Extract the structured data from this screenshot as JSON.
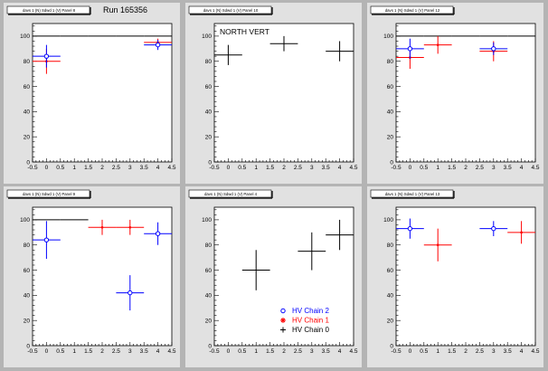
{
  "run_label": "Run 165356",
  "colors": {
    "background": "#b4b4b4",
    "pad": "#e1e1e1",
    "frame": "#ffffff",
    "chain0": "#000000",
    "chain1": "#ff0000",
    "chain2": "#0000ff"
  },
  "legend": [
    {
      "label": "HV Chain 2",
      "color": "#0000ff",
      "marker": "circle"
    },
    {
      "label": "HV Chain 1",
      "color": "#ff0000",
      "marker": "star"
    },
    {
      "label": "HV Chain 0",
      "color": "#000000",
      "marker": "plus"
    }
  ],
  "chart_data": [
    {
      "type": "scatter",
      "title": "davs 1 (N) Sdwd 1 (V) Panel 8",
      "annotation": "",
      "xlim": [
        -0.5,
        4.5
      ],
      "ylim": [
        0,
        110
      ],
      "xticks": [
        "-0.5",
        "0",
        "0.5",
        "1",
        "1.5",
        "2",
        "2.5",
        "3",
        "3.5",
        "4",
        "4.5"
      ],
      "yticks": [
        "0",
        "20",
        "40",
        "60",
        "80",
        "100"
      ],
      "series": [
        {
          "color": "#000000",
          "marker": "plus",
          "points": [
            {
              "x": 0,
              "y": 100,
              "xerr": 0.5,
              "yerr": 0
            },
            {
              "x": 1,
              "y": 100,
              "xerr": 0.5,
              "yerr": 0
            },
            {
              "x": 2,
              "y": 100,
              "xerr": 0.5,
              "yerr": 0
            },
            {
              "x": 3,
              "y": 100,
              "xerr": 0.5,
              "yerr": 0
            },
            {
              "x": 4,
              "y": 100,
              "xerr": 0.5,
              "yerr": 0
            }
          ]
        },
        {
          "color": "#ff0000",
          "marker": "star",
          "points": [
            {
              "x": 0,
              "y": 80,
              "xerr": 0.5,
              "yerr": 10
            },
            {
              "x": 4,
              "y": 95,
              "xerr": 0.5,
              "yerr": 3
            }
          ]
        },
        {
          "color": "#0000ff",
          "marker": "circle",
          "points": [
            {
              "x": 0,
              "y": 84,
              "xerr": 0.5,
              "yerr": 9
            },
            {
              "x": 4,
              "y": 93,
              "xerr": 0.5,
              "yerr": 4
            }
          ]
        }
      ]
    },
    {
      "type": "scatter",
      "title": "davs 1 (N) Sdwd 1 (V) Panel 10",
      "annotation": "NORTH VERT",
      "xlim": [
        -0.5,
        4.5
      ],
      "ylim": [
        0,
        110
      ],
      "xticks": [
        "-0.5",
        "0",
        "0.5",
        "1",
        "1.5",
        "2",
        "2.5",
        "3",
        "3.5",
        "4",
        "4.5"
      ],
      "yticks": [
        "0",
        "20",
        "40",
        "60",
        "80",
        "100"
      ],
      "series": [
        {
          "color": "#000000",
          "marker": "plus",
          "points": [
            {
              "x": 0,
              "y": 85,
              "xerr": 0.5,
              "yerr": 8
            },
            {
              "x": 2,
              "y": 94,
              "xerr": 0.5,
              "yerr": 6
            },
            {
              "x": 4,
              "y": 88,
              "xerr": 0.5,
              "yerr": 8
            }
          ]
        }
      ]
    },
    {
      "type": "scatter",
      "title": "davs 1 (N) Sdwd 1 (V) Panel 12",
      "annotation": "",
      "xlim": [
        -0.5,
        4.5
      ],
      "ylim": [
        0,
        110
      ],
      "xticks": [
        "-0.5",
        "0",
        "0.5",
        "1",
        "1.5",
        "2",
        "2.5",
        "3",
        "3.5",
        "4",
        "4.5"
      ],
      "yticks": [
        "0",
        "20",
        "40",
        "60",
        "80",
        "100"
      ],
      "series": [
        {
          "color": "#000000",
          "marker": "plus",
          "points": [
            {
              "x": 0,
              "y": 100,
              "xerr": 0.5,
              "yerr": 0
            },
            {
              "x": 1,
              "y": 100,
              "xerr": 0.5,
              "yerr": 0
            },
            {
              "x": 2,
              "y": 100,
              "xerr": 0.5,
              "yerr": 0
            },
            {
              "x": 3,
              "y": 100,
              "xerr": 0.5,
              "yerr": 0
            },
            {
              "x": 4,
              "y": 100,
              "xerr": 0.5,
              "yerr": 0
            }
          ]
        },
        {
          "color": "#ff0000",
          "marker": "star",
          "points": [
            {
              "x": 0,
              "y": 83,
              "xerr": 0.5,
              "yerr": 9
            },
            {
              "x": 1,
              "y": 93,
              "xerr": 0.5,
              "yerr": 7
            },
            {
              "x": 3,
              "y": 88,
              "xerr": 0.5,
              "yerr": 8
            }
          ]
        },
        {
          "color": "#0000ff",
          "marker": "circle",
          "points": [
            {
              "x": 0,
              "y": 90,
              "xerr": 0.5,
              "yerr": 8
            },
            {
              "x": 3,
              "y": 90,
              "xerr": 0.5,
              "yerr": 5
            }
          ]
        }
      ]
    },
    {
      "type": "scatter",
      "title": "davs 1 (N) Sdwd 1 (V) Panel 9",
      "annotation": "",
      "xlim": [
        -0.5,
        4.5
      ],
      "ylim": [
        0,
        110
      ],
      "xticks": [
        "-0.5",
        "0",
        "0.5",
        "1",
        "1.5",
        "2",
        "2.5",
        "3",
        "3.5",
        "4",
        "4.5"
      ],
      "yticks": [
        "0",
        "20",
        "40",
        "60",
        "80",
        "100"
      ],
      "series": [
        {
          "color": "#000000",
          "marker": "plus",
          "points": [
            {
              "x": 0,
              "y": 100,
              "xerr": 0.5,
              "yerr": 0
            },
            {
              "x": 1,
              "y": 100,
              "xerr": 0.5,
              "yerr": 0
            }
          ]
        },
        {
          "color": "#ff0000",
          "marker": "star",
          "points": [
            {
              "x": 2,
              "y": 94,
              "xerr": 0.5,
              "yerr": 6
            },
            {
              "x": 3,
              "y": 94,
              "xerr": 0.5,
              "yerr": 6
            }
          ]
        },
        {
          "color": "#0000ff",
          "marker": "circle",
          "points": [
            {
              "x": 0,
              "y": 84,
              "xerr": 0.5,
              "yerr": 15
            },
            {
              "x": 3,
              "y": 42,
              "xerr": 0.5,
              "yerr": 14
            },
            {
              "x": 4,
              "y": 89,
              "xerr": 0.5,
              "yerr": 9
            }
          ]
        }
      ]
    },
    {
      "type": "scatter",
      "title": "davs 1 (N) Sdwd 1 (V) Panel 4",
      "annotation": "",
      "xlim": [
        -0.5,
        4.5
      ],
      "ylim": [
        0,
        110
      ],
      "xticks": [
        "-0.5",
        "0",
        "0.5",
        "1",
        "1.5",
        "2",
        "2.5",
        "3",
        "3.5",
        "4",
        "4.5"
      ],
      "yticks": [
        "0",
        "20",
        "40",
        "60",
        "80",
        "100"
      ],
      "series": [
        {
          "color": "#000000",
          "marker": "plus",
          "points": [
            {
              "x": 1,
              "y": 60,
              "xerr": 0.5,
              "yerr": 16
            },
            {
              "x": 3,
              "y": 75,
              "xerr": 0.5,
              "yerr": 15
            },
            {
              "x": 4,
              "y": 88,
              "xerr": 0.5,
              "yerr": 12
            }
          ]
        }
      ]
    },
    {
      "type": "scatter",
      "title": "davs 1 (N) Sdwd 1 (V) Panel 13",
      "annotation": "",
      "xlim": [
        -0.5,
        4.5
      ],
      "ylim": [
        0,
        110
      ],
      "xticks": [
        "-0.5",
        "0",
        "0.5",
        "1",
        "1.5",
        "2",
        "2.5",
        "3",
        "3.5",
        "4",
        "4.5"
      ],
      "yticks": [
        "0",
        "20",
        "40",
        "60",
        "80",
        "100"
      ],
      "series": [
        {
          "color": "#ff0000",
          "marker": "star",
          "points": [
            {
              "x": 1,
              "y": 80,
              "xerr": 0.5,
              "yerr": 13
            },
            {
              "x": 4,
              "y": 90,
              "xerr": 0.5,
              "yerr": 9
            }
          ]
        },
        {
          "color": "#0000ff",
          "marker": "circle",
          "points": [
            {
              "x": 0,
              "y": 93,
              "xerr": 0.5,
              "yerr": 8
            },
            {
              "x": 3,
              "y": 93,
              "xerr": 0.5,
              "yerr": 6
            }
          ]
        }
      ]
    }
  ]
}
